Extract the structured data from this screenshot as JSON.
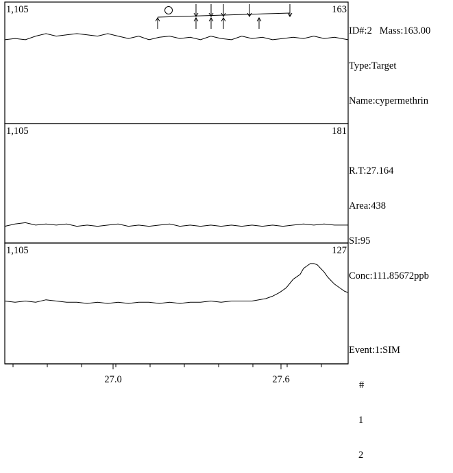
{
  "info": {
    "id_mass": "ID#:2   Mass:163.00",
    "type": "Type:Target",
    "name": "Name:cypermethrin",
    "rt": "R.T:27.164",
    "area": "Area:438",
    "si": "SI:95",
    "conc": "Conc:111.85672ppb",
    "event": "Event:1:SIM",
    "event_header": "#",
    "event_items": [
      "1",
      "2"
    ]
  },
  "chart_data": {
    "type": "line",
    "xaxis": {
      "ticks": [
        "27.0",
        "27.6"
      ]
    },
    "panels": [
      {
        "left_label": "1,105",
        "right_label": "163",
        "trace": [
          [
            0,
            0.69
          ],
          [
            0.03,
            0.7
          ],
          [
            0.06,
            0.69
          ],
          [
            0.09,
            0.72
          ],
          [
            0.12,
            0.74
          ],
          [
            0.15,
            0.72
          ],
          [
            0.18,
            0.73
          ],
          [
            0.21,
            0.74
          ],
          [
            0.24,
            0.73
          ],
          [
            0.27,
            0.72
          ],
          [
            0.3,
            0.74
          ],
          [
            0.33,
            0.72
          ],
          [
            0.36,
            0.7
          ],
          [
            0.39,
            0.72
          ],
          [
            0.42,
            0.69
          ],
          [
            0.45,
            0.71
          ],
          [
            0.48,
            0.72
          ],
          [
            0.51,
            0.7
          ],
          [
            0.54,
            0.71
          ],
          [
            0.57,
            0.69
          ],
          [
            0.6,
            0.72
          ],
          [
            0.63,
            0.7
          ],
          [
            0.66,
            0.69
          ],
          [
            0.69,
            0.72
          ],
          [
            0.72,
            0.7
          ],
          [
            0.75,
            0.71
          ],
          [
            0.78,
            0.69
          ],
          [
            0.81,
            0.7
          ],
          [
            0.84,
            0.71
          ],
          [
            0.87,
            0.7
          ],
          [
            0.9,
            0.72
          ],
          [
            0.93,
            0.7
          ],
          [
            0.96,
            0.71
          ],
          [
            1.0,
            0.69
          ]
        ],
        "annotations": "peak-markers"
      },
      {
        "left_label": "1,105",
        "right_label": "181",
        "trace": [
          [
            0,
            0.14
          ],
          [
            0.03,
            0.16
          ],
          [
            0.06,
            0.17
          ],
          [
            0.09,
            0.15
          ],
          [
            0.12,
            0.16
          ],
          [
            0.15,
            0.15
          ],
          [
            0.18,
            0.16
          ],
          [
            0.21,
            0.14
          ],
          [
            0.24,
            0.15
          ],
          [
            0.27,
            0.14
          ],
          [
            0.3,
            0.15
          ],
          [
            0.33,
            0.16
          ],
          [
            0.36,
            0.14
          ],
          [
            0.39,
            0.15
          ],
          [
            0.42,
            0.14
          ],
          [
            0.45,
            0.15
          ],
          [
            0.48,
            0.16
          ],
          [
            0.51,
            0.14
          ],
          [
            0.54,
            0.15
          ],
          [
            0.57,
            0.14
          ],
          [
            0.6,
            0.15
          ],
          [
            0.63,
            0.14
          ],
          [
            0.66,
            0.15
          ],
          [
            0.69,
            0.14
          ],
          [
            0.72,
            0.15
          ],
          [
            0.75,
            0.14
          ],
          [
            0.78,
            0.15
          ],
          [
            0.81,
            0.14
          ],
          [
            0.84,
            0.15
          ],
          [
            0.87,
            0.16
          ],
          [
            0.9,
            0.15
          ],
          [
            0.93,
            0.16
          ],
          [
            0.96,
            0.15
          ],
          [
            1.0,
            0.15
          ]
        ]
      },
      {
        "left_label": "1,105",
        "right_label": "127",
        "trace": [
          [
            0,
            0.52
          ],
          [
            0.03,
            0.51
          ],
          [
            0.06,
            0.52
          ],
          [
            0.09,
            0.51
          ],
          [
            0.12,
            0.53
          ],
          [
            0.15,
            0.52
          ],
          [
            0.18,
            0.51
          ],
          [
            0.21,
            0.51
          ],
          [
            0.24,
            0.5
          ],
          [
            0.27,
            0.51
          ],
          [
            0.3,
            0.5
          ],
          [
            0.33,
            0.51
          ],
          [
            0.36,
            0.5
          ],
          [
            0.39,
            0.51
          ],
          [
            0.42,
            0.51
          ],
          [
            0.45,
            0.5
          ],
          [
            0.48,
            0.51
          ],
          [
            0.51,
            0.5
          ],
          [
            0.54,
            0.51
          ],
          [
            0.57,
            0.51
          ],
          [
            0.6,
            0.52
          ],
          [
            0.63,
            0.51
          ],
          [
            0.66,
            0.52
          ],
          [
            0.69,
            0.52
          ],
          [
            0.72,
            0.52
          ],
          [
            0.74,
            0.53
          ],
          [
            0.76,
            0.54
          ],
          [
            0.78,
            0.56
          ],
          [
            0.8,
            0.59
          ],
          [
            0.82,
            0.63
          ],
          [
            0.84,
            0.7
          ],
          [
            0.86,
            0.74
          ],
          [
            0.87,
            0.79
          ],
          [
            0.88,
            0.81
          ],
          [
            0.89,
            0.83
          ],
          [
            0.9,
            0.83
          ],
          [
            0.91,
            0.82
          ],
          [
            0.92,
            0.79
          ],
          [
            0.93,
            0.76
          ],
          [
            0.94,
            0.72
          ],
          [
            0.95,
            0.69
          ],
          [
            0.96,
            0.66
          ],
          [
            0.97,
            0.64
          ],
          [
            0.98,
            0.62
          ],
          [
            0.99,
            0.6
          ],
          [
            1.0,
            0.59
          ]
        ]
      }
    ]
  }
}
